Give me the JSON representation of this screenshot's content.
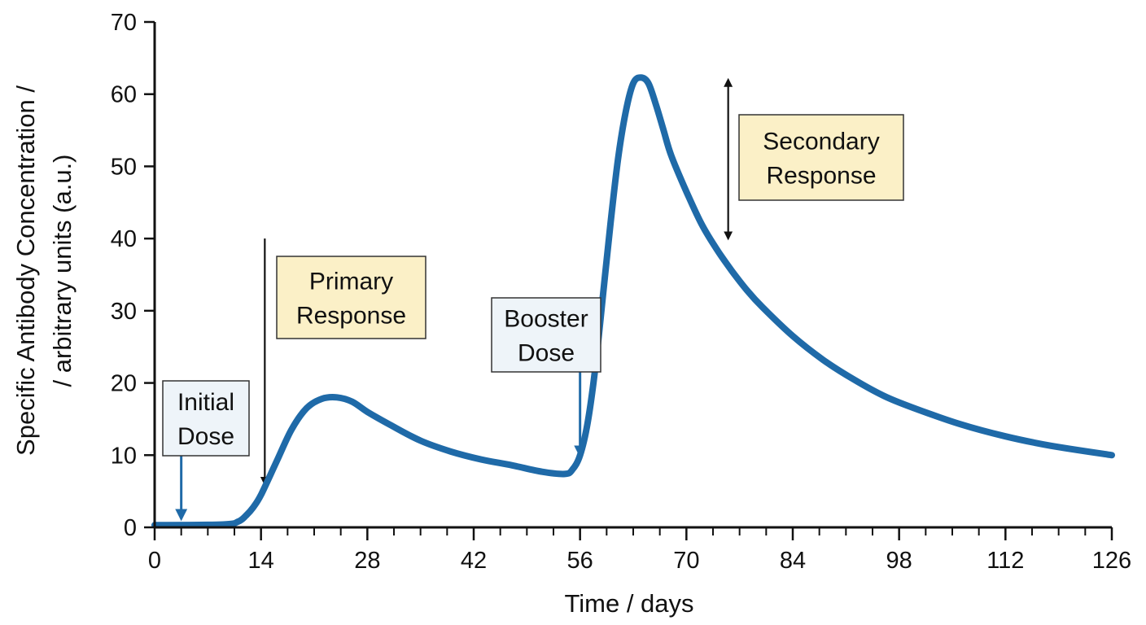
{
  "chart_data": {
    "type": "line",
    "xlabel": "Time / days",
    "ylabel_lines": [
      "Specific Antibody Concentration /",
      "/ arbitrary units (a.u.)"
    ],
    "xlim": [
      0,
      126
    ],
    "ylim": [
      0,
      70
    ],
    "x_ticks": [
      0,
      14,
      28,
      42,
      56,
      70,
      84,
      98,
      112,
      126
    ],
    "x_minor_step": 3.5,
    "y_ticks": [
      0,
      10,
      20,
      30,
      40,
      50,
      60,
      70
    ],
    "grid": false,
    "series": [
      {
        "color": "#1f6aa8",
        "x": [
          0,
          9,
          11,
          12,
          13,
          14,
          16,
          18,
          20,
          22,
          24,
          26,
          28,
          31,
          35,
          39,
          43,
          47,
          51,
          54,
          55,
          56,
          57,
          58,
          59,
          60,
          61,
          62,
          63,
          64,
          65,
          66,
          67,
          68,
          70,
          72,
          74,
          76,
          78,
          80,
          84,
          88,
          92,
          96,
          100,
          106,
          112,
          118,
          126
        ],
        "y": [
          0.3,
          0.4,
          0.8,
          1.6,
          2.8,
          4.5,
          9.0,
          13.5,
          16.5,
          17.8,
          18.0,
          17.4,
          16.0,
          14.2,
          12.0,
          10.5,
          9.4,
          8.6,
          7.7,
          7.4,
          8.0,
          10.0,
          14.5,
          22.0,
          32.0,
          42.0,
          51.0,
          57.5,
          61.5,
          62.3,
          61.5,
          58.5,
          55.0,
          51.5,
          46.5,
          42.0,
          38.5,
          35.5,
          32.8,
          30.5,
          26.5,
          23.2,
          20.5,
          18.2,
          16.5,
          14.3,
          12.6,
          11.3,
          10.0
        ]
      }
    ],
    "annotations": [
      {
        "lines": [
          "Initial",
          "Dose"
        ],
        "style": "blue",
        "arrow_color": "#1f6aa8",
        "arrow_x": 3.5,
        "arrow_from_y": 10,
        "arrow_to_y": 1.2
      },
      {
        "lines": [
          "Primary",
          "Response"
        ],
        "style": "yellow",
        "arrow_color": "#111111",
        "arrow_x": 14.5,
        "arrow_from_y": 40,
        "arrow_to_y": 6
      },
      {
        "lines": [
          "Booster",
          "Dose"
        ],
        "style": "blue",
        "arrow_color": "#1f6aa8",
        "arrow_x": 56,
        "arrow_from_y": 21.5,
        "arrow_to_y": 10
      },
      {
        "lines": [
          "Secondary",
          "Response"
        ],
        "style": "yellow",
        "arrow_color": "#111111",
        "arrow_x": 75.5,
        "arrow_from_y": 40,
        "arrow_to_y": 62,
        "double": true
      }
    ]
  }
}
